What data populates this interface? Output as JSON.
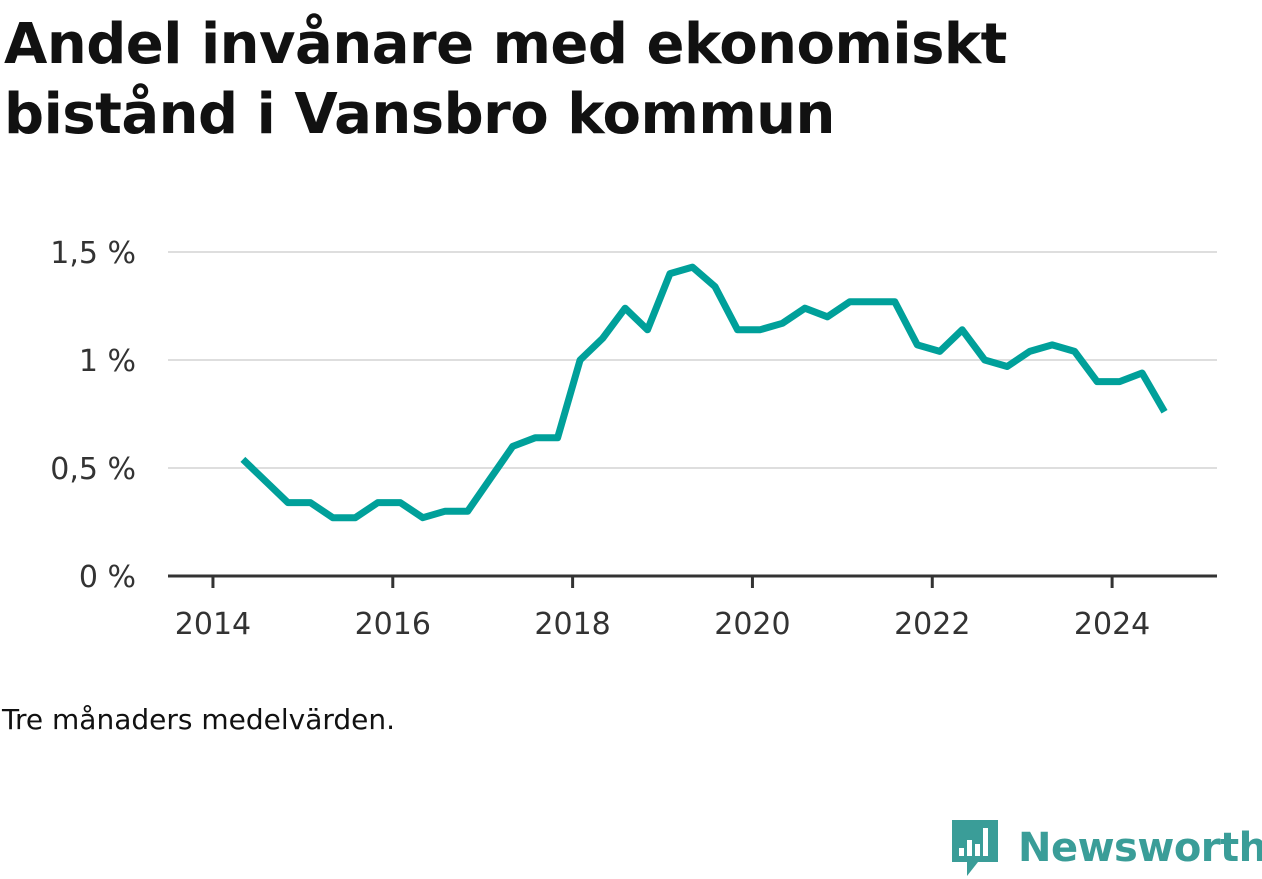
{
  "title": "Andel invånare med ekonomiskt bistånd i Vansbro kommun",
  "note": "Tre månaders medelvärden.",
  "brand": {
    "name": "Newsworthy",
    "icon": "newsworthy-logo-icon",
    "color": "#3a9d98"
  },
  "chart_data": {
    "type": "line",
    "title": "Andel invånare med ekonomiskt bistånd i Vansbro kommun",
    "xlabel": "",
    "ylabel": "",
    "x_ticks": [
      "2014",
      "2016",
      "2018",
      "2020",
      "2022",
      "2024"
    ],
    "y_ticks": [
      "0 %",
      "0,5 %",
      "1 %",
      "1,5 %"
    ],
    "y_tick_values": [
      0,
      0.5,
      1,
      1.5
    ],
    "ylim": [
      0,
      1.5
    ],
    "xlim": [
      "2013-07",
      "2025-03"
    ],
    "grid": true,
    "line_color": "#00a09a",
    "series": [
      {
        "x": [
          "2014-05",
          "2014-08",
          "2014-11",
          "2015-02",
          "2015-05",
          "2015-08",
          "2015-11",
          "2016-02",
          "2016-05",
          "2016-08",
          "2016-11",
          "2017-02",
          "2017-05",
          "2017-08",
          "2017-11",
          "2018-02",
          "2018-05",
          "2018-08",
          "2018-11",
          "2019-02",
          "2019-05",
          "2019-08",
          "2019-11",
          "2020-02",
          "2020-05",
          "2020-08",
          "2020-11",
          "2021-02",
          "2021-05",
          "2021-08",
          "2021-11",
          "2022-02",
          "2022-05",
          "2022-08",
          "2022-11",
          "2023-02",
          "2023-05",
          "2023-08",
          "2023-11",
          "2024-02",
          "2024-05",
          "2024-08"
        ],
        "values": [
          0.54,
          0.44,
          0.34,
          0.34,
          0.27,
          0.27,
          0.34,
          0.34,
          0.27,
          0.3,
          0.3,
          0.45,
          0.6,
          0.64,
          0.64,
          1.0,
          1.1,
          1.24,
          1.14,
          1.4,
          1.43,
          1.34,
          1.14,
          1.14,
          1.17,
          1.24,
          1.2,
          1.27,
          1.27,
          1.27,
          1.07,
          1.04,
          1.14,
          1.0,
          0.97,
          1.04,
          1.07,
          1.04,
          0.9,
          0.9,
          0.94,
          0.76
        ]
      }
    ]
  }
}
